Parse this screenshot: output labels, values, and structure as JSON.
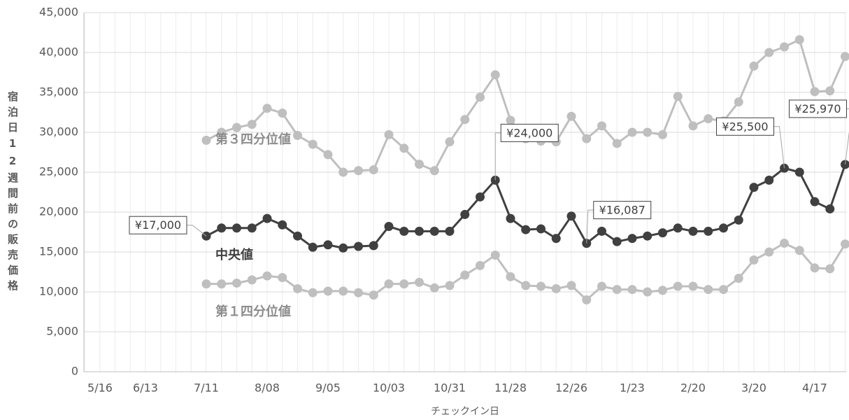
{
  "chart_data": {
    "type": "line",
    "y_label": "宿泊日12週間前の販売価格",
    "x_label": "チェックイン日",
    "categories": [
      "5/16",
      null,
      null,
      null,
      "6/13",
      null,
      null,
      null,
      "7/11",
      null,
      null,
      null,
      "8/08",
      null,
      null,
      null,
      "9/05",
      null,
      null,
      null,
      "10/03",
      null,
      null,
      null,
      "10/31",
      null,
      null,
      null,
      "11/28",
      null,
      null,
      null,
      "12/26",
      null,
      null,
      null,
      "1/23",
      null,
      null,
      null,
      "2/20",
      null,
      null,
      null,
      "3/20",
      null,
      null,
      null,
      "4/17",
      null,
      null
    ],
    "series": [
      {
        "name": "第３四分位値",
        "color": "#bfbfbf",
        "label_color": "#8c8c8c",
        "values": [
          null,
          null,
          null,
          null,
          null,
          null,
          null,
          null,
          29000,
          30000,
          30600,
          31000,
          33000,
          32400,
          29600,
          28500,
          27200,
          25000,
          25200,
          25300,
          29700,
          28000,
          26000,
          25200,
          28800,
          31600,
          34400,
          37200,
          31500,
          29200,
          28900,
          28800,
          32000,
          29200,
          30800,
          28600,
          30000,
          30000,
          29700,
          34500,
          30800,
          31700,
          31400,
          33800,
          38300,
          40000,
          40700,
          41600,
          35100,
          35200,
          39500
        ]
      },
      {
        "name": "中央値",
        "color": "#404040",
        "label_color": "#404040",
        "values": [
          null,
          null,
          null,
          null,
          null,
          null,
          null,
          null,
          17000,
          18000,
          18000,
          18000,
          19200,
          18400,
          17000,
          15600,
          15900,
          15500,
          15700,
          15800,
          18200,
          17600,
          17600,
          17600,
          17600,
          19700,
          21900,
          24000,
          19200,
          17800,
          17900,
          16700,
          19500,
          16087,
          17600,
          16300,
          16700,
          17000,
          17400,
          18000,
          17600,
          17600,
          18000,
          19000,
          23100,
          24000,
          25500,
          25000,
          21300,
          20400,
          25970
        ],
        "value_labels": [
          null,
          null,
          null,
          null,
          null,
          null,
          null,
          null,
          "¥17,000",
          null,
          null,
          null,
          null,
          null,
          null,
          null,
          null,
          null,
          null,
          null,
          null,
          null,
          null,
          null,
          null,
          null,
          null,
          "¥24,000",
          null,
          null,
          null,
          null,
          null,
          "¥16,087",
          null,
          null,
          null,
          null,
          null,
          null,
          null,
          null,
          null,
          null,
          null,
          null,
          "¥25,500",
          null,
          null,
          null,
          "¥25,970"
        ]
      },
      {
        "name": "第１四分位値",
        "color": "#bfbfbf",
        "label_color": "#8c8c8c",
        "values": [
          null,
          null,
          null,
          null,
          null,
          null,
          null,
          null,
          11000,
          11000,
          11100,
          11500,
          12000,
          11800,
          10400,
          9900,
          10100,
          10100,
          9900,
          9600,
          11000,
          11000,
          11200,
          10500,
          10800,
          12100,
          13300,
          14600,
          11900,
          10800,
          10700,
          10400,
          10800,
          9000,
          10700,
          10300,
          10300,
          10000,
          10200,
          10700,
          10700,
          10300,
          10300,
          11700,
          14000,
          15000,
          16100,
          15200,
          13000,
          12900,
          16000
        ]
      }
    ],
    "ylim": [
      0,
      45000
    ],
    "yticks": [
      0,
      {
        "value": 5000,
        "label": "5,000"
      },
      {
        "value": 10000,
        "label": "10,000"
      },
      {
        "value": 15000,
        "label": "15,000"
      },
      {
        "value": 20000,
        "label": "20,000"
      },
      {
        "value": 25000,
        "label": "25,000"
      },
      {
        "value": 30000,
        "label": "30,000"
      },
      {
        "value": 35000,
        "label": "35,000"
      },
      {
        "value": 40000,
        "label": "40,000"
      },
      {
        "value": 45000,
        "label": "45,000"
      }
    ],
    "grid": true
  }
}
